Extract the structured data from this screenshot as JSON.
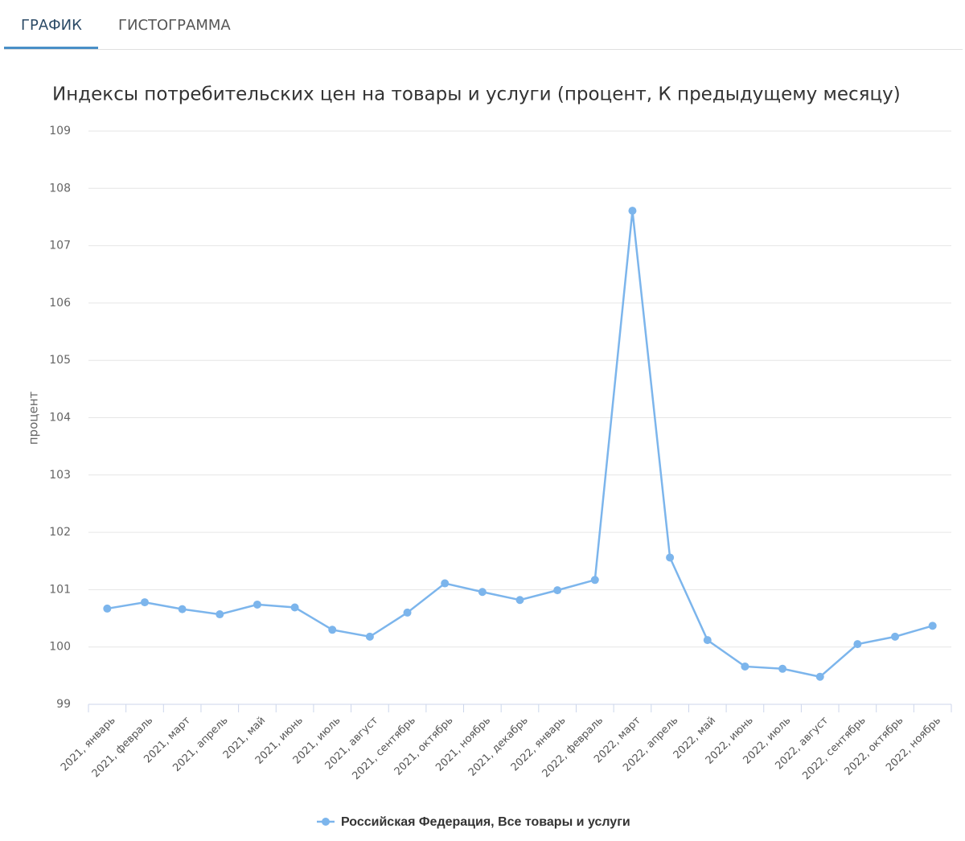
{
  "tabs": [
    "ГРАФИК",
    "ГИСТОГРАММА"
  ],
  "chart_data": {
    "type": "line",
    "title": "Индексы потребительских цен на товары и услуги (процент, К предыдущему месяцу)",
    "y_label": "процент",
    "categories": [
      "2021, январь",
      "2021, февраль",
      "2021, март",
      "2021, апрель",
      "2021, май",
      "2021, июнь",
      "2021, июль",
      "2021, август",
      "2021, сентябрь",
      "2021, октябрь",
      "2021, ноябрь",
      "2021, декабрь",
      "2022, январь",
      "2022, февраль",
      "2022, март",
      "2022, апрель",
      "2022, май",
      "2022, июнь",
      "2022, июль",
      "2022, август",
      "2022, сентябрь",
      "2022, октябрь",
      "2022, ноябрь"
    ],
    "series": [
      {
        "name": "Российская Федерация, Все товары и услуги",
        "color": "#7cb5ec",
        "values": [
          100.67,
          100.78,
          100.66,
          100.57,
          100.74,
          100.69,
          100.3,
          100.18,
          100.6,
          101.11,
          100.96,
          100.82,
          100.99,
          101.17,
          107.61,
          101.56,
          100.12,
          99.66,
          99.62,
          99.48,
          100.05,
          100.18,
          100.37
        ]
      }
    ],
    "ylim": [
      99,
      109
    ],
    "yticks": [
      99,
      100,
      101,
      102,
      103,
      104,
      105,
      106,
      107,
      108,
      109
    ],
    "grid": true,
    "legend": "bottom"
  }
}
